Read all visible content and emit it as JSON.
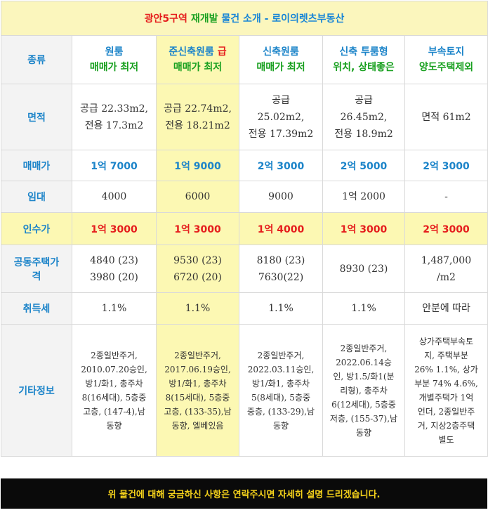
{
  "title": {
    "part1": "광안5구역 ",
    "part2": "재개발",
    "part3": " 물건 소개 - 로이의렛츠부동산"
  },
  "row_labels": {
    "type": "종류",
    "area": "면적",
    "sale_price": "매매가",
    "rent": "임대",
    "acquisition": "인수가",
    "official_price": "공동주택가\n격",
    "tax": "취득세",
    "other": "기타정보"
  },
  "properties": [
    {
      "header_line1": "원룸",
      "header_accent": "",
      "header_line2": "매매가 최저",
      "area": "공급 22.33m2,\n전용 17.3m2",
      "sale_price": "1억 7000",
      "rent": "4000",
      "acquisition": "1억 3000",
      "official_price": "4840 (23)\n3980 (20)",
      "tax": "1.1%",
      "other": "2종일반주거,\n2010.07.20승인,\n방1/화1, 총주차\n8(16세대), 5층중\n고층, (147-4),남\n동향"
    },
    {
      "header_line1": "준신축원룸 ",
      "header_accent": "급",
      "header_line2": "매매가 최저",
      "area": "공급 22.74m2,\n전용 18.21m2",
      "sale_price": "1억 9000",
      "rent": "6000",
      "acquisition": "1억 3000",
      "official_price": "9530 (23)\n6720 (20)",
      "tax": "1.1%",
      "other": "2종일반주거,\n2017.06.19승인,\n방1/화1, 총주차\n8(15세대), 5층중\n고층, (133-35),남\n동향, 엘베있음"
    },
    {
      "header_line1": "신축원룸",
      "header_accent": "",
      "header_line2": "매매가 최저",
      "area": "공급\n25.02m2,\n전용 17.39m2",
      "sale_price": "2억 3000",
      "rent": "9000",
      "acquisition": "1억 4000",
      "official_price": "8180 (23)\n7630(22)",
      "tax": "1.1%",
      "other": "2종일반주거,\n2022.03.11승인,\n방1/화1, 총주차\n5(8세대), 5층중\n중층, (133-29),남\n동향"
    },
    {
      "header_line1": "신축 투룸형",
      "header_accent": "",
      "header_line2": "위치, 상태좋은",
      "area": "공급\n26.45m2,\n전용 18.9m2",
      "sale_price": "2억 5000",
      "rent": "1억 2000",
      "acquisition": "1억 3000",
      "official_price": "8930 (23)",
      "tax": "1.1%",
      "other": "2종일반주거,\n2022.06.14승\n인, 방1.5/화1(분\n리형), 총주차\n6(12세대), 5층중\n저층, (155-37),남\n동향"
    },
    {
      "header_line1": "부속토지",
      "header_accent": "",
      "header_line2": "양도주택제외",
      "area": "면적 61m2",
      "sale_price": "2억 3000",
      "rent": "-",
      "acquisition": "2억 3000",
      "official_price": "1,487,000\n/m2",
      "tax": "안분에 따라",
      "other": "상가주택부속토\n지, 주택부분\n26% 1.1%, 상가\n부분 74% 4.6%,\n개별주택가 1억\n언더, 2종일반주\n거, 지상2층주택\n별도"
    }
  ],
  "footer": "위 물건에 대해 궁금하신 사항은 연락주시면 자세히 설명 드리겠습니다.",
  "colors": {
    "title_bg": "#fbf6bd",
    "highlight_bg": "#fcf8b3",
    "label_bg": "#f3f3f3",
    "label_text": "#1c84c9",
    "accent_red": "#e51d1d",
    "accent_green": "#18a01f",
    "footer_bg": "#0a0a0a",
    "footer_text": "#f5d21b"
  }
}
